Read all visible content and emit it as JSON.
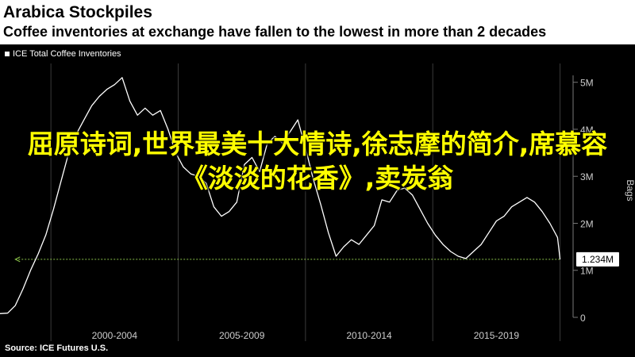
{
  "header": {
    "title": "Arabica Stockpiles",
    "subtitle": "Coffee inventories at exchange have fallen to the lowest in more than 2 decades"
  },
  "legend": {
    "label": "ICE Total Coffee Inventories",
    "color": "#ffffff"
  },
  "source": "Source: ICE Futures U.S.",
  "overlay_text": "屈原诗词,世界最美十大情诗,徐志摩的简介,席慕容《淡淡的花香》,卖炭翁",
  "colors": {
    "background": "#000000",
    "header_bg": "#ffffff",
    "line": "#ffffff",
    "reference_line": "#8bc34a",
    "overlay_text": "#ffff00",
    "axis_text": "#cccccc"
  },
  "chart_data": {
    "type": "line",
    "title": "Arabica Stockpiles",
    "subtitle": "Coffee inventories at exchange have fallen to the lowest in more than 2 decades",
    "ylabel": "Bags",
    "ylim": [
      0,
      5400000
    ],
    "yticks": [
      {
        "value": 0,
        "label": "0"
      },
      {
        "value": 1000000,
        "label": "1M"
      },
      {
        "value": 2000000,
        "label": "2M"
      },
      {
        "value": 3000000,
        "label": "3M"
      },
      {
        "value": 4000000,
        "label": "4M"
      },
      {
        "value": 5000000,
        "label": "5M"
      }
    ],
    "xlim": [
      1998.0,
      2020.2
    ],
    "xgroups": [
      {
        "label": "2000-2004",
        "start": 2000,
        "end": 2005
      },
      {
        "label": "2005-2009",
        "start": 2005,
        "end": 2010
      },
      {
        "label": "2010-2014",
        "start": 2010,
        "end": 2015
      },
      {
        "label": "2015-2019",
        "start": 2015,
        "end": 2020
      }
    ],
    "series": [
      {
        "name": "ICE Total Coffee Inventories",
        "x": [
          1998.0,
          1998.3,
          1998.6,
          1998.9,
          1999.2,
          1999.5,
          1999.8,
          2000.1,
          2000.4,
          2000.7,
          2001.0,
          2001.3,
          2001.6,
          2001.9,
          2002.2,
          2002.5,
          2002.8,
          2003.1,
          2003.4,
          2003.7,
          2004.0,
          2004.3,
          2004.6,
          2004.9,
          2005.2,
          2005.5,
          2005.8,
          2006.1,
          2006.4,
          2006.7,
          2007.0,
          2007.3,
          2007.6,
          2007.9,
          2008.2,
          2008.5,
          2008.8,
          2009.1,
          2009.4,
          2009.7,
          2010.0,
          2010.3,
          2010.6,
          2010.9,
          2011.2,
          2011.5,
          2011.8,
          2012.1,
          2012.4,
          2012.7,
          2013.0,
          2013.3,
          2013.6,
          2013.9,
          2014.2,
          2014.5,
          2014.8,
          2015.1,
          2015.4,
          2015.7,
          2016.0,
          2016.3,
          2016.6,
          2016.9,
          2017.2,
          2017.5,
          2017.8,
          2018.1,
          2018.4,
          2018.7,
          2019.0,
          2019.3,
          2019.6,
          2019.9,
          2020.0
        ],
        "values": [
          80000,
          90000,
          250000,
          600000,
          1000000,
          1350000,
          1750000,
          2300000,
          2900000,
          3500000,
          3900000,
          4200000,
          4500000,
          4700000,
          4850000,
          4950000,
          5100000,
          4600000,
          4300000,
          4450000,
          4300000,
          4400000,
          4000000,
          3500000,
          3200000,
          3050000,
          3000000,
          2850000,
          2350000,
          2150000,
          2250000,
          2450000,
          3250000,
          3400000,
          3100000,
          3700000,
          3850000,
          3700000,
          3950000,
          4200000,
          3600000,
          2950000,
          2400000,
          1800000,
          1300000,
          1500000,
          1650000,
          1550000,
          1750000,
          1950000,
          2500000,
          2450000,
          2700000,
          2750000,
          2600000,
          2300000,
          2000000,
          1750000,
          1550000,
          1400000,
          1300000,
          1250000,
          1400000,
          1550000,
          1800000,
          2050000,
          2150000,
          2350000,
          2450000,
          2550000,
          2450000,
          2250000,
          2000000,
          1700000,
          1234000
        ]
      }
    ],
    "reference_line": {
      "value": 1234000,
      "label": "1.234M",
      "style": "dotted",
      "from_x": 1998.6,
      "to_x": 2020.0
    },
    "grid": "vertical"
  }
}
